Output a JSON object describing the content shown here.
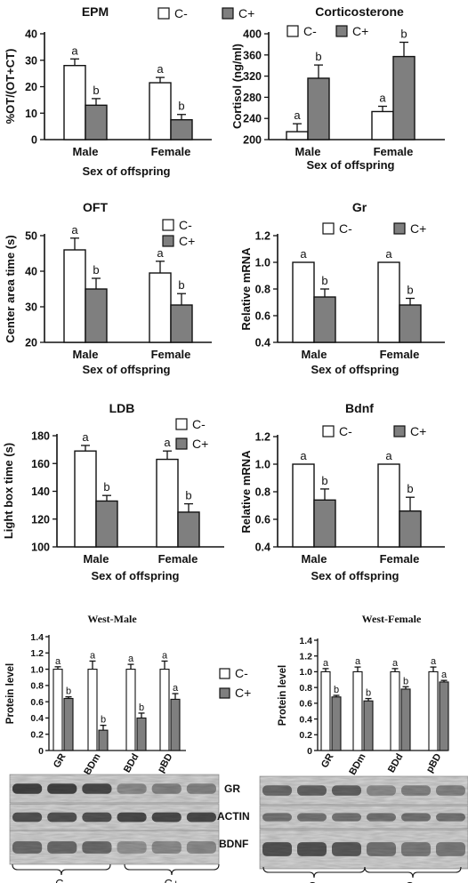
{
  "figure": {
    "legend_labels": [
      "C-",
      "C+"
    ],
    "colors": {
      "control": "#ffffff",
      "treated": "#7f7f7f",
      "axis": "#111111"
    }
  },
  "chart_data": [
    {
      "id": "epm",
      "type": "bar",
      "title": "EPM",
      "xlabel": "Sex of offspring",
      "ylabel": "%OT/(OT+CT)",
      "categories": [
        "Male",
        "Female"
      ],
      "ylim": [
        0,
        40
      ],
      "yticks": [
        0,
        10,
        20,
        30,
        40
      ],
      "series": [
        {
          "name": "C-",
          "values": [
            28,
            21.5
          ],
          "errors": [
            2.5,
            2
          ],
          "labels": [
            "a",
            "a"
          ]
        },
        {
          "name": "C+",
          "values": [
            13,
            7.5
          ],
          "errors": [
            2.5,
            2
          ],
          "labels": [
            "b",
            "b"
          ]
        }
      ],
      "legend": "top-right"
    },
    {
      "id": "corticosterone",
      "type": "bar",
      "title": "Corticosterone",
      "xlabel": "Sex of offspring",
      "ylabel": "Cortisol (ng/ml)",
      "categories": [
        "Male",
        "Female"
      ],
      "ylim": [
        200,
        400
      ],
      "yticks": [
        200,
        240,
        280,
        320,
        360,
        400
      ],
      "series": [
        {
          "name": "C-",
          "values": [
            215,
            253
          ],
          "errors": [
            15,
            10
          ],
          "labels": [
            "a",
            "a"
          ]
        },
        {
          "name": "C+",
          "values": [
            316,
            357
          ],
          "errors": [
            25,
            27
          ],
          "labels": [
            "b",
            "b"
          ]
        }
      ],
      "legend": "top-right"
    },
    {
      "id": "oft",
      "type": "bar",
      "title": "OFT",
      "xlabel": "Sex of offspring",
      "ylabel": "Center area time (s)",
      "categories": [
        "Male",
        "Female"
      ],
      "ylim": [
        20,
        50
      ],
      "yticks": [
        20,
        30,
        40,
        50
      ],
      "series": [
        {
          "name": "C-",
          "values": [
            46,
            39.5
          ],
          "errors": [
            3.3,
            3.3
          ],
          "labels": [
            "a",
            "a"
          ]
        },
        {
          "name": "C+",
          "values": [
            35,
            30.5
          ],
          "errors": [
            3,
            3.2
          ],
          "labels": [
            "b",
            "b"
          ]
        }
      ],
      "legend": "top-right"
    },
    {
      "id": "gr",
      "type": "bar",
      "title": "Gr",
      "xlabel": "Sex of offspring",
      "ylabel": "Relative mRNA",
      "categories": [
        "Male",
        "Female"
      ],
      "ylim": [
        0.4,
        1.2
      ],
      "yticks": [
        0.4,
        0.6,
        0.8,
        1.0,
        1.2
      ],
      "tick_labels": [
        "0.4",
        "0.6",
        "0.8",
        "1.0",
        "1.2"
      ],
      "series": [
        {
          "name": "C-",
          "values": [
            1.0,
            1.0
          ],
          "errors": [
            0,
            0
          ],
          "labels": [
            "a",
            "a"
          ]
        },
        {
          "name": "C+",
          "values": [
            0.74,
            0.68
          ],
          "errors": [
            0.06,
            0.05
          ],
          "labels": [
            "b",
            "b"
          ]
        }
      ],
      "legend": "top-right"
    },
    {
      "id": "ldb",
      "type": "bar",
      "title": "LDB",
      "xlabel": "Sex of offspring",
      "ylabel": "Light box time (s)",
      "categories": [
        "Male",
        "Female"
      ],
      "ylim": [
        100,
        180
      ],
      "yticks": [
        100,
        120,
        140,
        160,
        180
      ],
      "series": [
        {
          "name": "C-",
          "values": [
            169,
            163
          ],
          "errors": [
            4,
            6
          ],
          "labels": [
            "a",
            "a"
          ]
        },
        {
          "name": "C+",
          "values": [
            133,
            125
          ],
          "errors": [
            4,
            6
          ],
          "labels": [
            "b",
            "b"
          ]
        }
      ],
      "legend": "top-right"
    },
    {
      "id": "bdnf",
      "type": "bar",
      "title": "Bdnf",
      "xlabel": "Sex of offspring",
      "ylabel": "Relative mRNA",
      "categories": [
        "Male",
        "Female"
      ],
      "ylim": [
        0.4,
        1.2
      ],
      "yticks": [
        0.4,
        0.6,
        0.8,
        1.0,
        1.2
      ],
      "tick_labels": [
        "0.4",
        "0.6",
        "0.8",
        "1.0",
        "1.2"
      ],
      "series": [
        {
          "name": "C-",
          "values": [
            1.0,
            1.0
          ],
          "errors": [
            0,
            0
          ],
          "labels": [
            "a",
            "a"
          ]
        },
        {
          "name": "C+",
          "values": [
            0.74,
            0.66
          ],
          "errors": [
            0.08,
            0.1
          ],
          "labels": [
            "b",
            "b"
          ]
        }
      ],
      "legend": "top-right"
    },
    {
      "id": "west-male",
      "type": "bar",
      "title": "West-Male",
      "ylabel": "Protein level",
      "categories": [
        "GR",
        "BDm",
        "BDd",
        "pBD"
      ],
      "ylim": [
        0,
        1.4
      ],
      "yticks": [
        0,
        0.2,
        0.4,
        0.6,
        0.8,
        1.0,
        1.2,
        1.4
      ],
      "tick_labels": [
        "0",
        "0.2",
        "0.4",
        "0.6",
        "0.8",
        "1.0",
        "1.2",
        "1.4"
      ],
      "series": [
        {
          "name": "C-",
          "values": [
            1.0,
            1.0,
            1.0,
            1.0
          ],
          "errors": [
            0.03,
            0.1,
            0.06,
            0.1
          ],
          "labels": [
            "a",
            "a",
            "a",
            "a"
          ]
        },
        {
          "name": "C+",
          "values": [
            0.64,
            0.25,
            0.4,
            0.63
          ],
          "errors": [
            0.02,
            0.06,
            0.06,
            0.07
          ],
          "labels": [
            "b",
            "b",
            "b",
            "a"
          ]
        }
      ],
      "legend": "right"
    },
    {
      "id": "west-female",
      "type": "bar",
      "title": "West-Female",
      "ylabel": "Protein level",
      "categories": [
        "GR",
        "BDm",
        "BDd",
        "pBD"
      ],
      "ylim": [
        0,
        1.4
      ],
      "yticks": [
        0,
        0.2,
        0.4,
        0.6,
        0.8,
        1.0,
        1.2,
        1.4
      ],
      "tick_labels": [
        "0",
        "0.2",
        "0.4",
        "0.6",
        "0.8",
        "1.0",
        "1.2",
        "1.4"
      ],
      "series": [
        {
          "name": "C-",
          "values": [
            1.0,
            1.0,
            1.0,
            1.0
          ],
          "errors": [
            0.04,
            0.06,
            0.04,
            0.06
          ],
          "labels": [
            "a",
            "a",
            "a",
            "a"
          ]
        },
        {
          "name": "C+",
          "values": [
            0.68,
            0.63,
            0.78,
            0.87
          ],
          "errors": [
            0.02,
            0.03,
            0.03,
            0.02
          ],
          "labels": [
            "b",
            "b",
            "b",
            "a"
          ]
        }
      ]
    }
  ],
  "blots": {
    "male": {
      "bands": [
        "GR",
        "ACTIN",
        "BDNF"
      ],
      "groups": [
        "C-",
        "C+"
      ]
    },
    "female": {
      "groups": [
        "C-",
        "C+"
      ]
    }
  }
}
